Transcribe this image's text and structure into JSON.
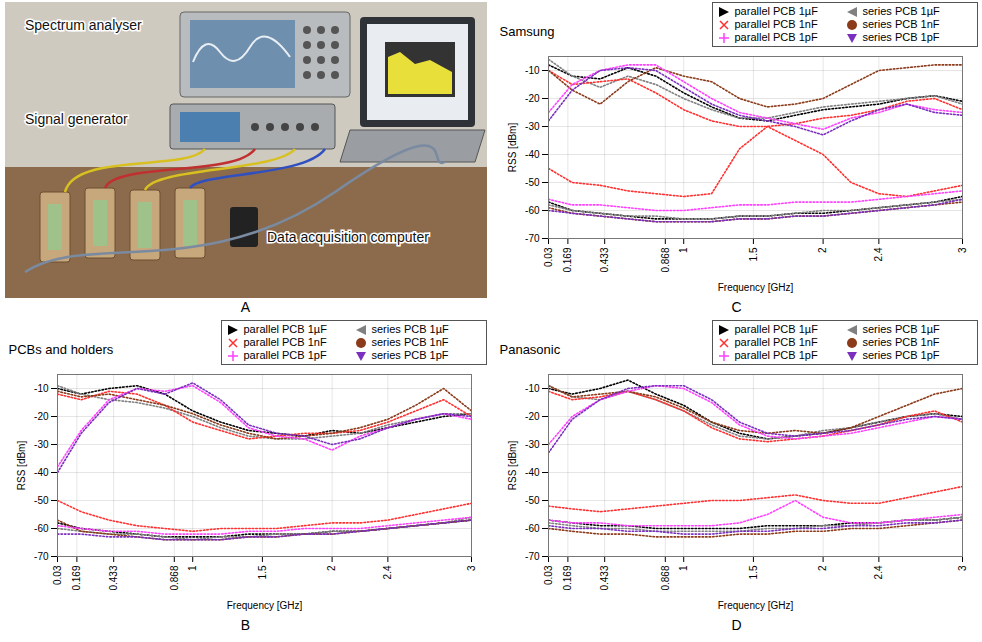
{
  "photo": {
    "panel": "A",
    "labels": [
      "Spectrum analyser",
      "Signal generator",
      "Data acquisition computer"
    ]
  },
  "chart_data": [
    {
      "type": "line",
      "panel": "B",
      "title": "PCBs and holders",
      "x_label": "Frequency [GHz]",
      "y_label": "RSS [dBm]",
      "x": [
        0.03,
        0.2,
        0.4,
        0.6,
        0.8,
        1.0,
        1.2,
        1.4,
        1.6,
        1.8,
        2.0,
        2.2,
        2.4,
        2.6,
        2.8,
        3.0
      ],
      "xlim": [
        0.03,
        3
      ],
      "xticks": [
        0.03,
        0.169,
        0.433,
        0.868,
        1,
        1.5,
        2,
        2.4,
        3
      ],
      "ylim": [
        -70,
        -5
      ],
      "yticks": [
        -70,
        -60,
        -50,
        -40,
        -30,
        -20,
        -10
      ],
      "grid": true,
      "legend": "top",
      "series": [
        {
          "name": "parallel PCB 1µF",
          "color": "#000000",
          "marker": "triangle-right",
          "line_style": "dotted",
          "values": [
            -10,
            -12,
            -10,
            -9,
            -12,
            -18,
            -22,
            -25,
            -26,
            -27,
            -25,
            -26,
            -24,
            -22,
            -20,
            -19
          ],
          "values_low": [
            -58,
            -60,
            -61,
            -62,
            -63,
            -63,
            -63,
            -62,
            -62,
            -62,
            -61,
            -61,
            -60,
            -59,
            -58,
            -57
          ]
        },
        {
          "name": "series PCB 1µF",
          "color": "#808080",
          "marker": "triangle-left",
          "line_style": "dotted",
          "values": [
            -9,
            -12,
            -14,
            -15,
            -17,
            -20,
            -24,
            -27,
            -28,
            -28,
            -27,
            -26,
            -23,
            -21,
            -19,
            -19
          ],
          "values_low": [
            -60,
            -61,
            -62,
            -62,
            -63,
            -64,
            -63,
            -63,
            -62,
            -62,
            -61,
            -61,
            -60,
            -59,
            -58,
            -56
          ]
        },
        {
          "name": "parallel PCB 1nF",
          "color": "#ff3030",
          "marker": "x",
          "line_style": "dotted",
          "values": [
            -12,
            -14,
            -11,
            -12,
            -16,
            -22,
            -25,
            -28,
            -27,
            -26,
            -26,
            -25,
            -22,
            -18,
            -14,
            -20
          ],
          "values_low": [
            -50,
            -54,
            -57,
            -59,
            -60,
            -61,
            -60,
            -60,
            -60,
            -59,
            -58,
            -58,
            -57,
            -55,
            -53,
            -51
          ]
        },
        {
          "name": "series PCB 1nF",
          "color": "#8b3a1a",
          "marker": "circle",
          "line_style": "dotted",
          "values": [
            -11,
            -13,
            -12,
            -14,
            -16,
            -19,
            -23,
            -26,
            -28,
            -27,
            -26,
            -24,
            -21,
            -16,
            -10,
            -18
          ],
          "values_low": [
            -57,
            -61,
            -62,
            -63,
            -64,
            -64,
            -64,
            -63,
            -63,
            -62,
            -62,
            -61,
            -60,
            -59,
            -58,
            -57
          ]
        },
        {
          "name": "parallel PCB 1pF",
          "color": "#ff40ff",
          "marker": "plus",
          "line_style": "dotted",
          "values": [
            -38,
            -25,
            -14,
            -10,
            -11,
            -9,
            -15,
            -24,
            -27,
            -28,
            -32,
            -27,
            -24,
            -21,
            -19,
            -21
          ],
          "values_low": [
            -59,
            -60,
            -61,
            -61,
            -62,
            -62,
            -62,
            -61,
            -61,
            -60,
            -60,
            -60,
            -59,
            -58,
            -57,
            -56
          ]
        },
        {
          "name": "series PCB 1pF",
          "color": "#7b2fbe",
          "marker": "triangle-down",
          "line_style": "dotted",
          "values": [
            -40,
            -26,
            -15,
            -10,
            -12,
            -8,
            -14,
            -23,
            -26,
            -27,
            -30,
            -28,
            -24,
            -21,
            -19,
            -20
          ],
          "values_low": [
            -62,
            -62,
            -63,
            -63,
            -64,
            -64,
            -64,
            -63,
            -63,
            -62,
            -62,
            -61,
            -60,
            -59,
            -58,
            -57
          ]
        }
      ]
    },
    {
      "type": "line",
      "panel": "C",
      "title": "Samsung",
      "x_label": "Frequency [GHz]",
      "y_label": "RSS [dBm]",
      "x": [
        0.03,
        0.2,
        0.4,
        0.6,
        0.8,
        1.0,
        1.2,
        1.4,
        1.6,
        1.8,
        2.0,
        2.2,
        2.4,
        2.6,
        2.8,
        3.0
      ],
      "xlim": [
        0.03,
        3
      ],
      "xticks": [
        0.03,
        0.169,
        0.433,
        0.868,
        1,
        1.5,
        2,
        2.4,
        3
      ],
      "ylim": [
        -70,
        -5
      ],
      "yticks": [
        -70,
        -60,
        -50,
        -40,
        -30,
        -20,
        -10
      ],
      "grid": true,
      "legend": "top",
      "series": [
        {
          "name": "parallel PCB 1µF",
          "color": "#000000",
          "marker": "triangle-right",
          "line_style": "dotted",
          "values": [
            -8,
            -12,
            -13,
            -9,
            -12,
            -18,
            -23,
            -27,
            -28,
            -26,
            -24,
            -23,
            -22,
            -20,
            -19,
            -21
          ],
          "values_low": [
            -57,
            -60,
            -61,
            -62,
            -63,
            -63,
            -63,
            -62,
            -62,
            -61,
            -61,
            -60,
            -59,
            -58,
            -57,
            -55
          ]
        },
        {
          "name": "series PCB 1µF",
          "color": "#808080",
          "marker": "triangle-left",
          "line_style": "dotted",
          "values": [
            -6,
            -12,
            -16,
            -12,
            -15,
            -20,
            -24,
            -27,
            -27,
            -25,
            -23,
            -22,
            -21,
            -20,
            -19,
            -22
          ],
          "values_low": [
            -58,
            -60,
            -61,
            -62,
            -62,
            -63,
            -63,
            -62,
            -62,
            -61,
            -60,
            -60,
            -59,
            -58,
            -57,
            -56
          ]
        },
        {
          "name": "parallel PCB 1nF",
          "color": "#ff3030",
          "marker": "x",
          "line_style": "dotted",
          "values": [
            -10,
            -15,
            -14,
            -13,
            -18,
            -24,
            -28,
            -30,
            -30,
            -29,
            -27,
            -26,
            -24,
            -21,
            -20,
            -24
          ],
          "values_low": [
            -45,
            -50,
            -51,
            -53,
            -54,
            -55,
            -54,
            -38,
            -30,
            -35,
            -40,
            -50,
            -54,
            -55,
            -53,
            -51
          ]
        },
        {
          "name": "series PCB 1nF",
          "color": "#8b3a1a",
          "marker": "circle",
          "line_style": "dotted",
          "values": [
            -10,
            -17,
            -22,
            -14,
            -9,
            -12,
            -14,
            -20,
            -23,
            -22,
            -20,
            -15,
            -10,
            -9,
            -8,
            -8
          ],
          "values_low": [
            -59,
            -61,
            -62,
            -63,
            -64,
            -64,
            -64,
            -63,
            -63,
            -62,
            -62,
            -61,
            -60,
            -59,
            -58,
            -57
          ]
        },
        {
          "name": "parallel PCB 1pF",
          "color": "#ff40ff",
          "marker": "plus",
          "line_style": "dotted",
          "values": [
            -25,
            -15,
            -10,
            -8,
            -8,
            -14,
            -20,
            -25,
            -27,
            -29,
            -31,
            -27,
            -25,
            -22,
            -24,
            -25
          ],
          "values_low": [
            -56,
            -58,
            -58,
            -59,
            -60,
            -60,
            -59,
            -58,
            -58,
            -57,
            -57,
            -57,
            -56,
            -55,
            -54,
            -53
          ]
        },
        {
          "name": "series PCB 1pF",
          "color": "#7b2fbe",
          "marker": "triangle-down",
          "line_style": "dotted",
          "values": [
            -28,
            -17,
            -10,
            -9,
            -10,
            -16,
            -22,
            -26,
            -28,
            -30,
            -33,
            -28,
            -24,
            -22,
            -25,
            -26
          ],
          "values_low": [
            -60,
            -61,
            -62,
            -63,
            -64,
            -64,
            -64,
            -63,
            -63,
            -62,
            -62,
            -61,
            -60,
            -59,
            -58,
            -56
          ]
        }
      ]
    },
    {
      "type": "line",
      "panel": "D",
      "title": "Panasonic",
      "x_label": "Frequency [GHz]",
      "y_label": "RSS [dBm]",
      "x": [
        0.03,
        0.2,
        0.4,
        0.6,
        0.8,
        1.0,
        1.2,
        1.4,
        1.6,
        1.8,
        2.0,
        2.2,
        2.4,
        2.6,
        2.8,
        3.0
      ],
      "xlim": [
        0.03,
        3
      ],
      "xticks": [
        0.03,
        0.169,
        0.433,
        0.868,
        1,
        1.5,
        2,
        2.4,
        3
      ],
      "ylim": [
        -70,
        -5
      ],
      "yticks": [
        -70,
        -60,
        -50,
        -40,
        -30,
        -20,
        -10
      ],
      "grid": true,
      "legend": "top",
      "series": [
        {
          "name": "parallel PCB 1µF",
          "color": "#000000",
          "marker": "triangle-right",
          "line_style": "dotted",
          "values": [
            -10,
            -12,
            -10,
            -7,
            -12,
            -16,
            -22,
            -26,
            -28,
            -27,
            -26,
            -24,
            -22,
            -20,
            -19,
            -20
          ],
          "values_low": [
            -57,
            -58,
            -59,
            -59,
            -60,
            -60,
            -60,
            -60,
            -59,
            -59,
            -59,
            -58,
            -58,
            -57,
            -57,
            -56
          ]
        },
        {
          "name": "series PCB 1µF",
          "color": "#808080",
          "marker": "triangle-left",
          "line_style": "dotted",
          "values": [
            -9,
            -13,
            -14,
            -11,
            -14,
            -18,
            -23,
            -27,
            -28,
            -27,
            -25,
            -24,
            -22,
            -20,
            -19,
            -21
          ],
          "values_low": [
            -58,
            -59,
            -60,
            -60,
            -61,
            -61,
            -61,
            -61,
            -60,
            -60,
            -59,
            -59,
            -58,
            -57,
            -57,
            -56
          ]
        },
        {
          "name": "parallel PCB 1nF",
          "color": "#ff3030",
          "marker": "x",
          "line_style": "dotted",
          "values": [
            -11,
            -14,
            -13,
            -11,
            -14,
            -18,
            -24,
            -28,
            -29,
            -28,
            -27,
            -25,
            -23,
            -20,
            -18,
            -22
          ],
          "values_low": [
            -52,
            -53,
            -54,
            -53,
            -52,
            -51,
            -50,
            -50,
            -49,
            -48,
            -50,
            -51,
            -51,
            -49,
            -47,
            -45
          ]
        },
        {
          "name": "series PCB 1nF",
          "color": "#8b3a1a",
          "marker": "circle",
          "line_style": "dotted",
          "values": [
            -9,
            -13,
            -12,
            -11,
            -13,
            -17,
            -22,
            -25,
            -26,
            -25,
            -26,
            -24,
            -20,
            -16,
            -12,
            -10
          ],
          "values_low": [
            -60,
            -61,
            -62,
            -62,
            -63,
            -63,
            -63,
            -62,
            -62,
            -61,
            -61,
            -60,
            -60,
            -59,
            -58,
            -57
          ]
        },
        {
          "name": "parallel PCB 1pF",
          "color": "#ff40ff",
          "marker": "plus",
          "line_style": "dotted",
          "values": [
            -30,
            -20,
            -14,
            -11,
            -9,
            -10,
            -15,
            -23,
            -27,
            -28,
            -27,
            -26,
            -24,
            -22,
            -20,
            -21
          ],
          "values_low": [
            -57,
            -58,
            -58,
            -59,
            -59,
            -59,
            -59,
            -58,
            -55,
            -50,
            -56,
            -58,
            -58,
            -57,
            -56,
            -55
          ]
        },
        {
          "name": "series PCB 1pF",
          "color": "#7b2fbe",
          "marker": "triangle-down",
          "line_style": "dotted",
          "values": [
            -33,
            -21,
            -14,
            -10,
            -9,
            -9,
            -14,
            -22,
            -26,
            -27,
            -26,
            -25,
            -23,
            -21,
            -20,
            -21
          ],
          "values_low": [
            -59,
            -60,
            -60,
            -61,
            -61,
            -62,
            -62,
            -61,
            -61,
            -60,
            -60,
            -59,
            -59,
            -58,
            -58,
            -57
          ]
        }
      ]
    }
  ]
}
